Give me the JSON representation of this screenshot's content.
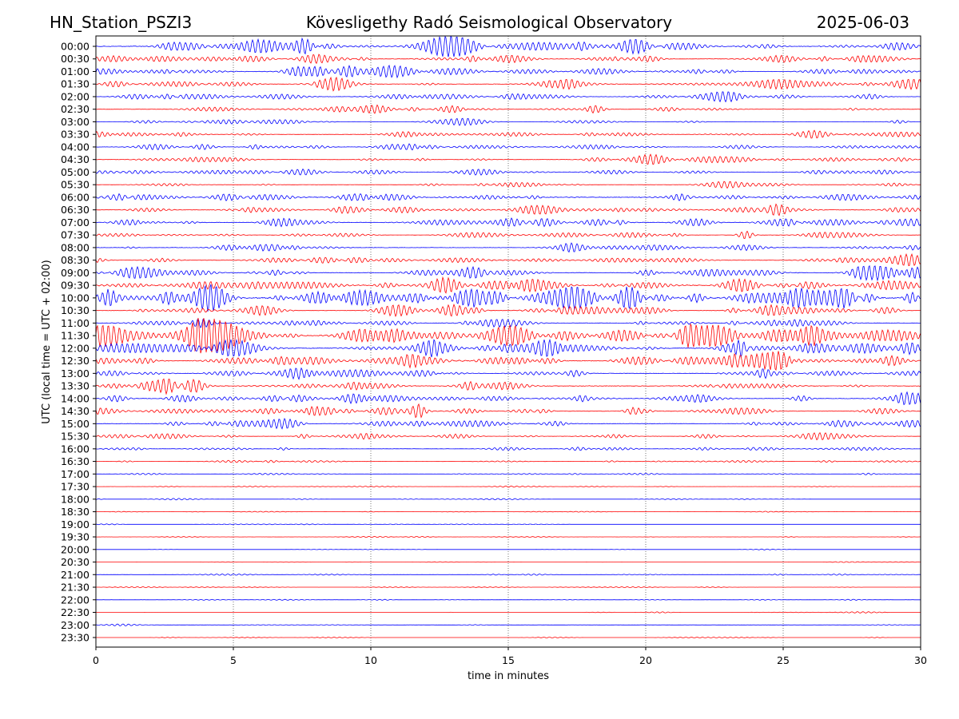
{
  "chart_data": {
    "type": "line",
    "title_left": "HN_Station_PSZI3",
    "title": "Kövesligethy Radó Seismological Observatory",
    "title_right": "2025-06-03",
    "xlabel": "time in minutes",
    "ylabel": "UTC (local time = UTC + 02:00)",
    "xlim": [
      0,
      30
    ],
    "x_ticks": [
      "0",
      "5",
      "10",
      "15",
      "20",
      "25",
      "30"
    ],
    "grid": "vertical dotted at x ticks",
    "series_colors": [
      "#0000ff",
      "#ff0000"
    ],
    "rows": [
      "00:00",
      "00:30",
      "01:00",
      "01:30",
      "02:00",
      "02:30",
      "03:00",
      "03:30",
      "04:00",
      "04:30",
      "05:00",
      "05:30",
      "06:00",
      "06:30",
      "07:00",
      "07:30",
      "08:00",
      "08:30",
      "09:00",
      "09:30",
      "10:00",
      "10:30",
      "11:00",
      "11:30",
      "12:00",
      "12:30",
      "13:00",
      "13:30",
      "14:00",
      "14:30",
      "15:00",
      "15:30",
      "16:00",
      "16:30",
      "17:00",
      "17:30",
      "18:00",
      "18:30",
      "19:00",
      "19:30",
      "20:00",
      "20:30",
      "21:00",
      "21:30",
      "22:00",
      "22:30",
      "23:00",
      "23:30"
    ],
    "relative_amplitude": [
      0.5,
      0.35,
      0.35,
      0.35,
      0.3,
      0.25,
      0.2,
      0.25,
      0.3,
      0.3,
      0.25,
      0.2,
      0.45,
      0.35,
      0.4,
      0.25,
      0.3,
      0.35,
      0.45,
      0.5,
      0.8,
      0.35,
      0.35,
      0.75,
      0.55,
      0.55,
      0.45,
      0.45,
      0.35,
      0.4,
      0.35,
      0.25,
      0.2,
      0.15,
      0.08,
      0.05,
      0.06,
      0.06,
      0.04,
      0.04,
      0.04,
      0.04,
      0.06,
      0.05,
      0.05,
      0.04,
      0.04,
      0.04
    ]
  }
}
